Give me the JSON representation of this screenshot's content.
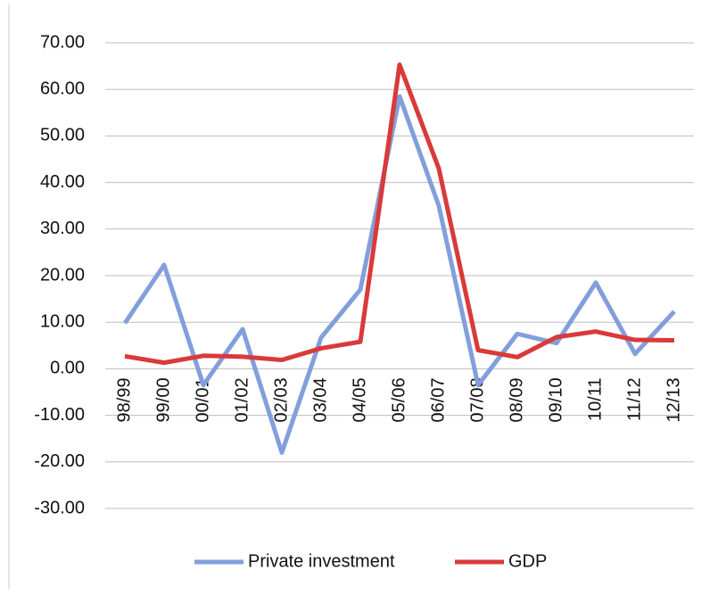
{
  "chart_data": {
    "type": "line",
    "categories": [
      "98/99",
      "99/00",
      "00/01",
      "01/02",
      "02/03",
      "03/04",
      "04/05",
      "05/06",
      "06/07",
      "07/08",
      "08/09",
      "09/10",
      "10/11",
      "11/12",
      "12/13"
    ],
    "series": [
      {
        "name": "Private investment",
        "color": "#829fdc",
        "values": [
          9.8,
          22.3,
          -3.5,
          8.5,
          -18.0,
          6.7,
          17.0,
          58.5,
          35.0,
          -3.5,
          7.5,
          5.5,
          18.5,
          3.2,
          12.3
        ]
      },
      {
        "name": "GDP",
        "color": "#d93a3a",
        "values": [
          2.7,
          1.3,
          2.8,
          2.6,
          1.9,
          4.4,
          5.8,
          65.3,
          43.0,
          4.0,
          2.5,
          6.8,
          8.0,
          6.2,
          6.1
        ]
      }
    ],
    "ylim": [
      -30,
      70
    ],
    "yticks": [
      {
        "value": -30,
        "label": "-30.00"
      },
      {
        "value": -20,
        "label": "-20.00"
      },
      {
        "value": -10,
        "label": "-10.00"
      },
      {
        "value": 0,
        "label": "0.00"
      },
      {
        "value": 10,
        "label": "10.00"
      },
      {
        "value": 20,
        "label": "20.00"
      },
      {
        "value": 30,
        "label": "30.00"
      },
      {
        "value": 40,
        "label": "40.00"
      },
      {
        "value": 50,
        "label": "50.00"
      },
      {
        "value": 60,
        "label": "60.00"
      },
      {
        "value": 70,
        "label": "70.00"
      }
    ],
    "grid": true,
    "legend": "bottom"
  }
}
